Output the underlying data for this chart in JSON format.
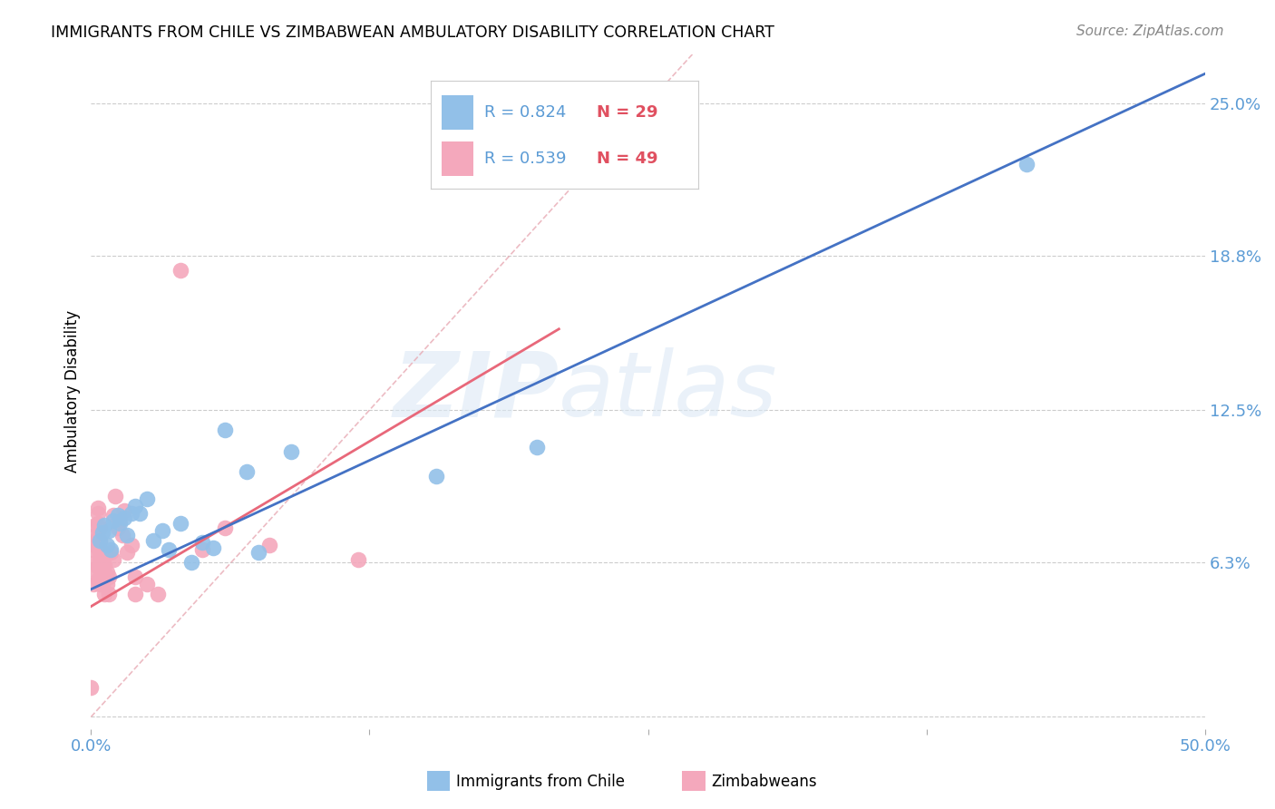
{
  "title": "IMMIGRANTS FROM CHILE VS ZIMBABWEAN AMBULATORY DISABILITY CORRELATION CHART",
  "source": "Source: ZipAtlas.com",
  "tick_color": "#5b9bd5",
  "ylabel": "Ambulatory Disability",
  "xlim": [
    0.0,
    0.5
  ],
  "ylim": [
    -0.005,
    0.27
  ],
  "x_ticks": [
    0.0,
    0.125,
    0.25,
    0.375,
    0.5
  ],
  "x_tick_labels": [
    "0.0%",
    "",
    "",
    "",
    "50.0%"
  ],
  "y_ticks_right": [
    0.25,
    0.188,
    0.125,
    0.063,
    0.0
  ],
  "y_tick_labels_right": [
    "25.0%",
    "18.8%",
    "12.5%",
    "6.3%",
    ""
  ],
  "blue_scatter_color": "#92c0e8",
  "pink_scatter_color": "#f4a8bc",
  "line_blue": "#4472c4",
  "line_pink": "#e8687a",
  "diag_line_color": "#e8aab4",
  "watermark_zip": "ZIP",
  "watermark_atlas": "atlas",
  "scatter_blue": [
    [
      0.004,
      0.072
    ],
    [
      0.005,
      0.075
    ],
    [
      0.006,
      0.078
    ],
    [
      0.007,
      0.07
    ],
    [
      0.008,
      0.076
    ],
    [
      0.009,
      0.068
    ],
    [
      0.01,
      0.08
    ],
    [
      0.012,
      0.082
    ],
    [
      0.013,
      0.079
    ],
    [
      0.015,
      0.081
    ],
    [
      0.016,
      0.074
    ],
    [
      0.018,
      0.083
    ],
    [
      0.02,
      0.086
    ],
    [
      0.022,
      0.083
    ],
    [
      0.025,
      0.089
    ],
    [
      0.028,
      0.072
    ],
    [
      0.032,
      0.076
    ],
    [
      0.035,
      0.068
    ],
    [
      0.04,
      0.079
    ],
    [
      0.045,
      0.063
    ],
    [
      0.05,
      0.071
    ],
    [
      0.055,
      0.069
    ],
    [
      0.06,
      0.117
    ],
    [
      0.07,
      0.1
    ],
    [
      0.075,
      0.067
    ],
    [
      0.09,
      0.108
    ],
    [
      0.155,
      0.098
    ],
    [
      0.2,
      0.11
    ],
    [
      0.42,
      0.225
    ]
  ],
  "scatter_pink": [
    [
      0.0,
      0.012
    ],
    [
      0.001,
      0.054
    ],
    [
      0.001,
      0.06
    ],
    [
      0.001,
      0.068
    ],
    [
      0.002,
      0.07
    ],
    [
      0.002,
      0.063
    ],
    [
      0.002,
      0.074
    ],
    [
      0.002,
      0.078
    ],
    [
      0.003,
      0.056
    ],
    [
      0.003,
      0.061
    ],
    [
      0.003,
      0.069
    ],
    [
      0.003,
      0.073
    ],
    [
      0.003,
      0.079
    ],
    [
      0.003,
      0.083
    ],
    [
      0.003,
      0.085
    ],
    [
      0.004,
      0.064
    ],
    [
      0.004,
      0.067
    ],
    [
      0.004,
      0.072
    ],
    [
      0.004,
      0.077
    ],
    [
      0.004,
      0.054
    ],
    [
      0.005,
      0.067
    ],
    [
      0.005,
      0.06
    ],
    [
      0.005,
      0.054
    ],
    [
      0.006,
      0.05
    ],
    [
      0.006,
      0.057
    ],
    [
      0.006,
      0.062
    ],
    [
      0.007,
      0.054
    ],
    [
      0.007,
      0.059
    ],
    [
      0.008,
      0.05
    ],
    [
      0.008,
      0.057
    ],
    [
      0.009,
      0.067
    ],
    [
      0.01,
      0.064
    ],
    [
      0.01,
      0.082
    ],
    [
      0.011,
      0.09
    ],
    [
      0.012,
      0.077
    ],
    [
      0.013,
      0.08
    ],
    [
      0.014,
      0.074
    ],
    [
      0.015,
      0.084
    ],
    [
      0.016,
      0.067
    ],
    [
      0.018,
      0.07
    ],
    [
      0.02,
      0.057
    ],
    [
      0.02,
      0.05
    ],
    [
      0.025,
      0.054
    ],
    [
      0.03,
      0.05
    ],
    [
      0.04,
      0.182
    ],
    [
      0.05,
      0.068
    ],
    [
      0.06,
      0.077
    ],
    [
      0.08,
      0.07
    ],
    [
      0.12,
      0.064
    ]
  ],
  "blue_line_x": [
    0.0,
    0.5
  ],
  "blue_line_y": [
    0.052,
    0.262
  ],
  "pink_line_x": [
    0.0,
    0.21
  ],
  "pink_line_y": [
    0.045,
    0.158
  ],
  "diag_line_x": [
    0.0,
    0.27
  ],
  "diag_line_y": [
    0.0,
    0.27
  ]
}
